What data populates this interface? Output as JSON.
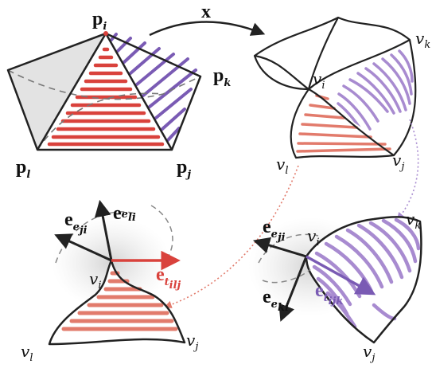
{
  "labels": {
    "p": "p",
    "x_map": "x",
    "v": "v",
    "e": "e",
    "i": "i",
    "j": "j",
    "k": "k",
    "l": "l",
    "e_ji": "e",
    "e_li": "e",
    "e_ki": "e",
    "t_ilj": "t",
    "t_ijk": "t",
    "sub_ilj": "ilj",
    "sub_ijk": "ijk"
  },
  "colors": {
    "red": "#d9423c",
    "salmon": "#e27b6c",
    "purple": "#7a5bb4",
    "lavender": "#a88bd0",
    "gray_fill": "#e3e3e3",
    "stroke": "#222222"
  }
}
